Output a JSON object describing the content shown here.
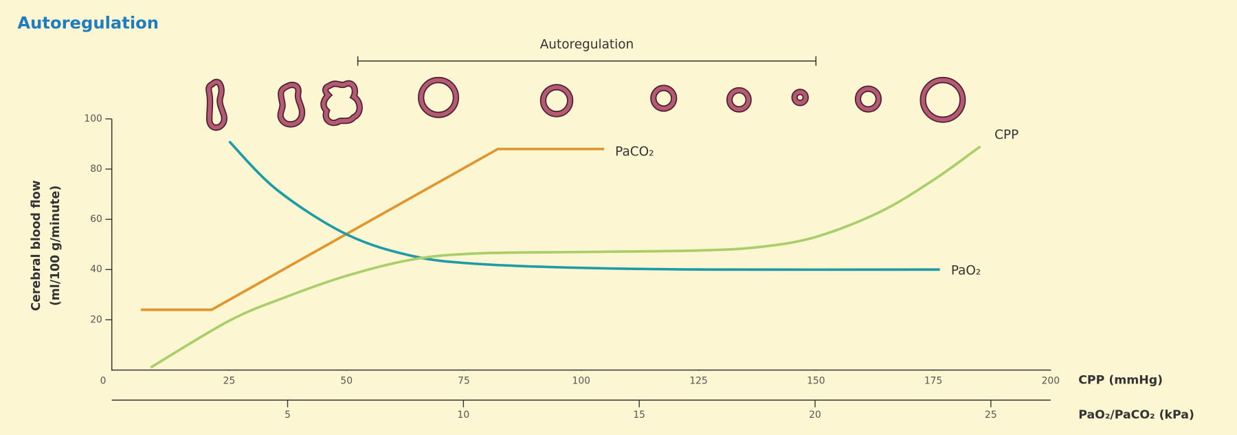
{
  "chart_data": {
    "type": "line",
    "title": "Autoregulation",
    "y_label": "Cerebral blood flow",
    "y_label_2": "(ml/100 g/minute)",
    "x_label": "CPP (mmHg)",
    "x2_label": "PaO₂/PaCO₂ (kPa)",
    "xlim": [
      0,
      200
    ],
    "xticks": [
      0,
      25,
      50,
      75,
      100,
      125,
      150,
      175,
      200
    ],
    "x2lim": [
      0,
      26.7
    ],
    "x2ticks": [
      5,
      10,
      15,
      20,
      25
    ],
    "ylim": [
      0,
      100
    ],
    "yticks": [
      20,
      40,
      60,
      80,
      100
    ],
    "annotation": {
      "text": "Autoregulation",
      "x": [
        52.4,
        150
      ]
    },
    "series": [
      {
        "name": "PaCO₂",
        "color": "#e0962c",
        "axis": "x2",
        "smooth": false,
        "x": [
          0.83,
          2.84,
          10.98,
          14.0
        ],
        "values": [
          24,
          24,
          88,
          88
        ]
      },
      {
        "name": "PaO₂",
        "color": "#1f9aa8",
        "axis": "x2",
        "smooth": true,
        "x": [
          3.34,
          4.71,
          6.68,
          8.55,
          10.35,
          13.28,
          17.12,
          23.55
        ],
        "values": [
          91,
          71.6,
          54,
          45.4,
          42.3,
          40.7,
          40,
          40
        ]
      },
      {
        "name": "CPP",
        "color": "#a9cf6a",
        "axis": "x",
        "smooth": true,
        "x": [
          8.3,
          25,
          37,
          50,
          64,
          77.5,
          100,
          125,
          138,
          150,
          163.7,
          175.3,
          185
        ],
        "values": [
          1,
          19.6,
          29,
          37.5,
          44,
          46.4,
          47,
          47.6,
          49,
          53,
          63,
          76,
          89
        ]
      }
    ]
  }
}
